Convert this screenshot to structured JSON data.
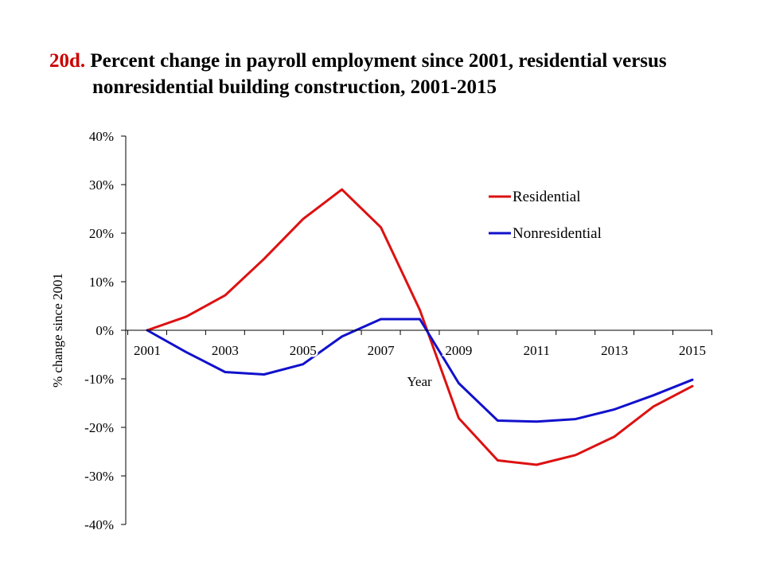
{
  "title": {
    "number": "20d.",
    "line1": "Percent change in payroll employment since 2001, residential versus",
    "line2": "nonresidential building construction, 2001-2015"
  },
  "chart_data": {
    "type": "line",
    "title": "Percent change in payroll employment since 2001, residential versus nonresidential building construction, 2001-2015",
    "xlabel": "Year",
    "ylabel": "% change since 2001",
    "ylim": [
      -40,
      40
    ],
    "y_ticks": [
      "40%",
      "30%",
      "20%",
      "10%",
      "0%",
      "-10%",
      "-20%",
      "-30%",
      "-40%"
    ],
    "x_tick_labels": [
      "2001",
      "2003",
      "2005",
      "2007",
      "2009",
      "2011",
      "2013",
      "2015"
    ],
    "x": [
      2001,
      2002,
      2003,
      2004,
      2005,
      2006,
      2007,
      2008,
      2009,
      2010,
      2011,
      2012,
      2013,
      2014,
      2015
    ],
    "legend_position": "top-right",
    "grid": false,
    "series": [
      {
        "name": "Residential",
        "color": "#dd1111",
        "values": [
          0,
          2.8,
          7.2,
          14.7,
          22.9,
          29.0,
          21.2,
          4.2,
          -18.1,
          -26.8,
          -27.7,
          -25.7,
          -21.9,
          -15.7,
          -11.5
        ]
      },
      {
        "name": "Nonresidential",
        "color": "#1111cc",
        "values": [
          0,
          -4.5,
          -8.6,
          -9.1,
          -7.0,
          -1.3,
          2.3,
          2.3,
          -10.9,
          -18.6,
          -18.8,
          -18.3,
          -16.3,
          -13.4,
          -10.2
        ]
      }
    ]
  }
}
